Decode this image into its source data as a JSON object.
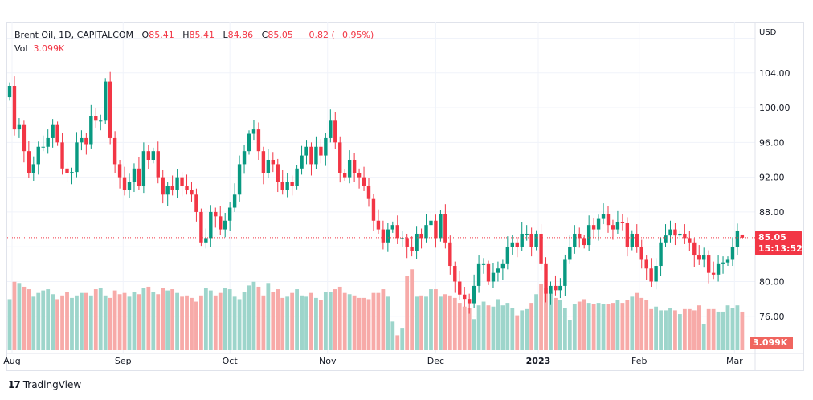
{
  "legend": {
    "symbol": "Brent Oil, 1D, CAPITALCOM",
    "open_label": "O",
    "open": "85.41",
    "high_label": "H",
    "high": "85.41",
    "low_label": "L",
    "low": "84.86",
    "close_label": "C",
    "close": "85.05",
    "change": "−0.82 (−0.95%)",
    "vol_label": "Vol",
    "vol": "3.099K"
  },
  "axis_currency": "USD",
  "price_label": {
    "price": "85.05",
    "countdown": "15:13:52"
  },
  "volume_label": "3.099K",
  "branding": {
    "logo_text": "TradingView",
    "logo_mark": "17"
  },
  "colors": {
    "up": "#089981",
    "down": "#f23645",
    "up_vol": "#9dd5cb",
    "down_vol": "#f7aaa8",
    "grid": "#f0f3fa"
  },
  "chart_data": {
    "type": "candlestick",
    "title": "Brent Oil, 1D, CAPITALCOM",
    "ylabel": "USD",
    "ylim": [
      72.1,
      109.8
    ],
    "y_ticks": [
      76,
      80,
      88,
      92,
      96,
      100,
      104
    ],
    "y_tick_labels": [
      "76.00",
      "80.00",
      "88.00",
      "92.00",
      "96.00",
      "100.00",
      "104.00"
    ],
    "x_ticks": [
      {
        "label": "Aug",
        "index": 0.5,
        "bold": false
      },
      {
        "label": "Sep",
        "index": 23.7,
        "bold": false
      },
      {
        "label": "Oct",
        "index": 46,
        "bold": false
      },
      {
        "label": "Nov",
        "index": 66.4,
        "bold": false
      },
      {
        "label": "Dec",
        "index": 89,
        "bold": false
      },
      {
        "label": "2023",
        "index": 110.4,
        "bold": true
      },
      {
        "label": "Feb",
        "index": 131.5,
        "bold": false
      },
      {
        "label": "Mar",
        "index": 151.4,
        "bold": false
      }
    ],
    "first_open": 101.2,
    "last_candle": {
      "open": 85.41,
      "high": 85.41,
      "low": 84.86,
      "close": 85.05
    },
    "current_price": 85.05,
    "close": [
      102.5,
      97.5,
      98,
      95,
      92.5,
      93.5,
      95.5,
      95.5,
      96.5,
      98,
      96,
      93,
      92.5,
      92.6,
      96,
      96.5,
      95.8,
      99,
      98.5,
      98.5,
      103,
      96.5,
      93.5,
      92,
      90.5,
      91.5,
      93,
      91,
      95,
      94,
      95,
      92,
      90,
      91,
      90.5,
      92,
      91,
      90.5,
      90,
      88,
      84.5,
      85,
      88,
      87.5,
      86,
      87,
      88.5,
      90,
      93.5,
      95,
      97,
      97.5,
      95,
      92.5,
      94,
      93.5,
      91.5,
      90.5,
      91.5,
      91,
      93,
      94.5,
      95.5,
      93.5,
      95.5,
      94.5,
      96.5,
      98.5,
      96,
      92.5,
      92,
      94,
      92.5,
      92,
      91,
      89.5,
      87,
      86,
      84.5,
      86,
      86.5,
      85,
      85,
      84,
      83.5,
      85.5,
      85,
      86.5,
      87,
      85,
      87.8,
      84.5,
      81.8,
      80,
      78.5,
      78,
      77.5,
      79.5,
      82,
      82,
      80,
      81,
      81.5,
      82,
      84,
      84.5,
      84,
      85.5,
      85.5,
      84,
      85.5,
      82,
      78.6,
      79.5,
      79,
      79.5,
      82.5,
      84,
      85.5,
      85,
      84.2,
      86.5,
      86,
      87.2,
      87.8,
      86.5,
      86,
      86.8,
      86.7,
      84,
      85.5,
      84,
      82.5,
      81.5,
      80,
      81.8,
      84.5,
      85.3,
      86,
      85.3,
      85.5,
      85,
      84.5,
      83,
      82.5,
      83,
      81,
      80.8,
      82,
      82.2,
      82.5,
      84,
      85.87,
      85.05
    ],
    "volume_k": [
      4.1,
      5.5,
      5.4,
      5.1,
      4.9,
      4.3,
      4.6,
      4.8,
      4.9,
      4.5,
      4.1,
      4.4,
      4.7,
      4.2,
      4.4,
      4.6,
      4.6,
      4.4,
      4.9,
      5.0,
      4.4,
      4.2,
      4.8,
      4.5,
      4.6,
      4.3,
      4.7,
      4.5,
      5.0,
      5.1,
      4.7,
      4.5,
      5.0,
      4.8,
      4.9,
      4.6,
      4.3,
      4.4,
      4.2,
      3.9,
      4.4,
      5.0,
      4.8,
      4.4,
      4.6,
      5.0,
      4.9,
      4.3,
      4.1,
      4.7,
      5.2,
      5.5,
      5.1,
      4.4,
      5.4,
      4.7,
      4.9,
      4.2,
      4.3,
      4.6,
      4.9,
      4.4,
      4.3,
      4.6,
      4.2,
      4.0,
      4.7,
      4.7,
      4.9,
      5.1,
      4.6,
      4.5,
      4.4,
      4.2,
      4.2,
      4.1,
      4.6,
      4.6,
      4.9,
      4.3,
      2.3,
      1.2,
      1.8,
      6.0,
      6.5,
      4.3,
      4.4,
      4.3,
      4.9,
      4.9,
      4.3,
      4.5,
      4.4,
      4.2,
      3.8,
      3.5,
      3.4,
      2.5,
      3.6,
      3.9,
      3.6,
      3.5,
      4.1,
      3.6,
      3.8,
      3.4,
      2.8,
      3.2,
      3.3,
      3.8,
      4.5,
      5.3,
      5.0,
      4.6,
      4.2,
      4.0,
      3.4,
      2.4,
      3.7,
      3.9,
      4.1,
      3.8,
      3.7,
      3.8,
      3.7,
      3.7,
      3.8,
      4.0,
      3.8,
      4.0,
      4.3,
      4.6,
      4.2,
      4.0,
      3.3,
      3.5,
      3.2,
      3.2,
      3.4,
      3.2,
      2.9,
      3.3,
      3.3,
      3.2,
      3.6,
      2.1,
      3.3,
      3.3,
      3.1,
      3.1,
      3.6,
      3.4,
      3.6,
      3.099
    ]
  }
}
